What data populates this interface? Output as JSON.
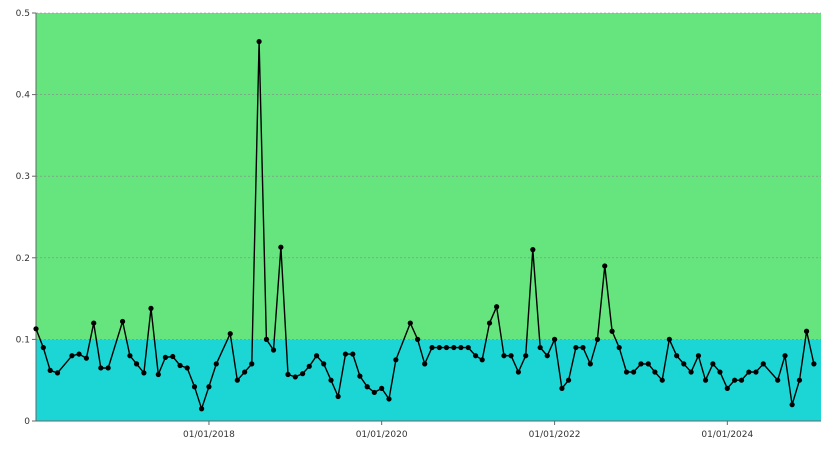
{
  "chart_data": {
    "type": "line",
    "x_type": "date",
    "ylim": [
      0,
      0.5
    ],
    "y_ticks": [
      0,
      0.1,
      0.2,
      0.3,
      0.4,
      0.5
    ],
    "y_tick_labels": [
      "0",
      "0.1",
      "0.2",
      "0.3",
      "0.4",
      "0.5"
    ],
    "xlim": [
      "2016-01-01",
      "2025-01-31"
    ],
    "x_ticks": [
      "2018-01-01",
      "2020-01-01",
      "2022-01-01",
      "2024-01-01"
    ],
    "x_tick_labels": [
      "01/01/2018",
      "01/01/2020",
      "01/01/2022",
      "01/01/2024"
    ],
    "grid": "horizontal dashed",
    "bands": [
      {
        "from": 0,
        "to": 0.1,
        "color": "#1BD6D5"
      },
      {
        "from": 0.1,
        "to": 0.5,
        "color": "#66E57E"
      }
    ],
    "series": [
      {
        "color": "#000000",
        "points": [
          [
            "2016-01-01",
            0.113
          ],
          [
            "2016-02-01",
            0.09
          ],
          [
            "2016-03-01",
            0.062
          ],
          [
            "2016-04-01",
            0.059
          ],
          [
            "2016-06-01",
            0.08
          ],
          [
            "2016-07-01",
            0.082
          ],
          [
            "2016-08-01",
            0.077
          ],
          [
            "2016-09-01",
            0.12
          ],
          [
            "2016-10-01",
            0.065
          ],
          [
            "2016-11-01",
            0.065
          ],
          [
            "2017-01-01",
            0.122
          ],
          [
            "2017-02-01",
            0.08
          ],
          [
            "2017-03-01",
            0.07
          ],
          [
            "2017-04-01",
            0.059
          ],
          [
            "2017-05-01",
            0.138
          ],
          [
            "2017-06-01",
            0.057
          ],
          [
            "2017-07-01",
            0.078
          ],
          [
            "2017-08-01",
            0.079
          ],
          [
            "2017-09-01",
            0.068
          ],
          [
            "2017-10-01",
            0.065
          ],
          [
            "2017-11-01",
            0.042
          ],
          [
            "2017-12-01",
            0.015
          ],
          [
            "2018-01-01",
            0.042
          ],
          [
            "2018-02-01",
            0.07
          ],
          [
            "2018-04-01",
            0.107
          ],
          [
            "2018-05-01",
            0.05
          ],
          [
            "2018-06-01",
            0.06
          ],
          [
            "2018-07-01",
            0.07
          ],
          [
            "2018-08-01",
            0.465
          ],
          [
            "2018-09-01",
            0.1
          ],
          [
            "2018-10-01",
            0.087
          ],
          [
            "2018-11-01",
            0.213
          ],
          [
            "2018-12-01",
            0.057
          ],
          [
            "2019-01-01",
            0.054
          ],
          [
            "2019-02-01",
            0.058
          ],
          [
            "2019-03-01",
            0.067
          ],
          [
            "2019-04-01",
            0.08
          ],
          [
            "2019-05-01",
            0.07
          ],
          [
            "2019-06-01",
            0.05
          ],
          [
            "2019-07-01",
            0.03
          ],
          [
            "2019-08-01",
            0.082
          ],
          [
            "2019-09-01",
            0.082
          ],
          [
            "2019-10-01",
            0.055
          ],
          [
            "2019-11-01",
            0.042
          ],
          [
            "2019-12-01",
            0.035
          ],
          [
            "2020-01-01",
            0.04
          ],
          [
            "2020-02-01",
            0.027
          ],
          [
            "2020-03-01",
            0.075
          ],
          [
            "2020-05-01",
            0.12
          ],
          [
            "2020-06-01",
            0.1
          ],
          [
            "2020-07-01",
            0.07
          ],
          [
            "2020-08-01",
            0.09
          ],
          [
            "2020-09-01",
            0.09
          ],
          [
            "2020-10-01",
            0.09
          ],
          [
            "2020-11-01",
            0.09
          ],
          [
            "2020-12-01",
            0.09
          ],
          [
            "2021-01-01",
            0.09
          ],
          [
            "2021-02-01",
            0.08
          ],
          [
            "2021-03-01",
            0.075
          ],
          [
            "2021-04-01",
            0.12
          ],
          [
            "2021-05-01",
            0.14
          ],
          [
            "2021-06-01",
            0.08
          ],
          [
            "2021-07-01",
            0.08
          ],
          [
            "2021-08-01",
            0.06
          ],
          [
            "2021-09-01",
            0.08
          ],
          [
            "2021-10-01",
            0.21
          ],
          [
            "2021-11-01",
            0.09
          ],
          [
            "2021-12-01",
            0.08
          ],
          [
            "2022-01-01",
            0.1
          ],
          [
            "2022-02-01",
            0.04
          ],
          [
            "2022-03-01",
            0.05
          ],
          [
            "2022-04-01",
            0.09
          ],
          [
            "2022-05-01",
            0.09
          ],
          [
            "2022-06-01",
            0.07
          ],
          [
            "2022-07-01",
            0.1
          ],
          [
            "2022-08-01",
            0.19
          ],
          [
            "2022-09-01",
            0.11
          ],
          [
            "2022-10-01",
            0.09
          ],
          [
            "2022-11-01",
            0.06
          ],
          [
            "2022-12-01",
            0.06
          ],
          [
            "2023-01-01",
            0.07
          ],
          [
            "2023-02-01",
            0.07
          ],
          [
            "2023-03-01",
            0.06
          ],
          [
            "2023-04-01",
            0.05
          ],
          [
            "2023-05-01",
            0.1
          ],
          [
            "2023-06-01",
            0.08
          ],
          [
            "2023-07-01",
            0.07
          ],
          [
            "2023-08-01",
            0.06
          ],
          [
            "2023-09-01",
            0.08
          ],
          [
            "2023-10-01",
            0.05
          ],
          [
            "2023-11-01",
            0.07
          ],
          [
            "2023-12-01",
            0.06
          ],
          [
            "2024-01-01",
            0.04
          ],
          [
            "2024-02-01",
            0.05
          ],
          [
            "2024-03-01",
            0.05
          ],
          [
            "2024-04-01",
            0.06
          ],
          [
            "2024-05-01",
            0.06
          ],
          [
            "2024-06-01",
            0.07
          ],
          [
            "2024-08-01",
            0.05
          ],
          [
            "2024-09-01",
            0.08
          ],
          [
            "2024-10-01",
            0.02
          ],
          [
            "2024-11-01",
            0.05
          ],
          [
            "2024-12-01",
            0.11
          ],
          [
            "2025-01-01",
            0.07
          ]
        ]
      }
    ]
  }
}
